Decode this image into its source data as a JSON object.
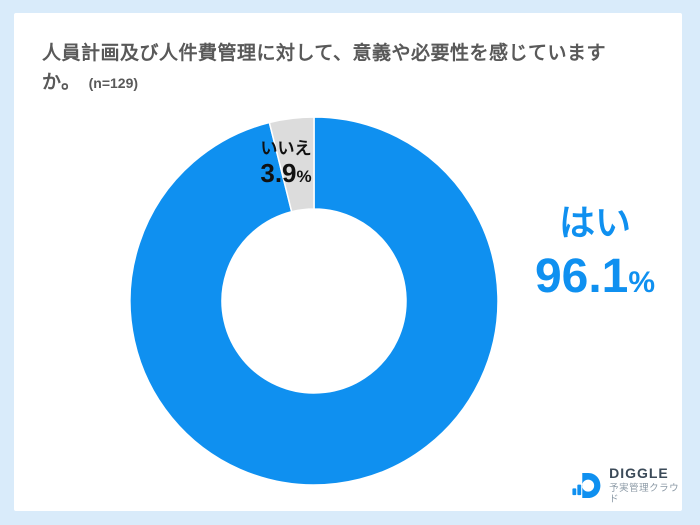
{
  "page": {
    "background": "#d9ebfa",
    "card_background": "#ffffff"
  },
  "title": {
    "line1": "人員計画及び人件費管理に対して、意義や必要性を感じています",
    "line2": "か。",
    "sample_size": "(n=129)",
    "color": "#595959"
  },
  "chart_data": {
    "type": "pie",
    "subtype": "donut",
    "title": "人員計画及び人件費管理に対して、意義や必要性を感じていますか。",
    "sample_size_label": "(n=129)",
    "n": 129,
    "categories": [
      "はい",
      "いいえ"
    ],
    "values": [
      96.1,
      3.9
    ],
    "unit": "%",
    "colors": [
      "#0f90f0",
      "#dcdcdc"
    ],
    "start_angle_deg": 0,
    "direction": "clockwise",
    "inner_radius_ratio": 0.5,
    "legend": "none",
    "labels": {
      "yes": {
        "name": "はい",
        "value": "96.1",
        "unit": "%",
        "color": "#0f90f0"
      },
      "no": {
        "name": "いいえ",
        "value": "3.9",
        "unit": "%",
        "color": "#111111"
      }
    }
  },
  "logo": {
    "brand": "DIGGLE",
    "subtitle": "予実管理クラウド",
    "mark_color": "#0f90f0",
    "brand_color": "#3b4a58",
    "subtitle_color": "#8c9aa6"
  }
}
